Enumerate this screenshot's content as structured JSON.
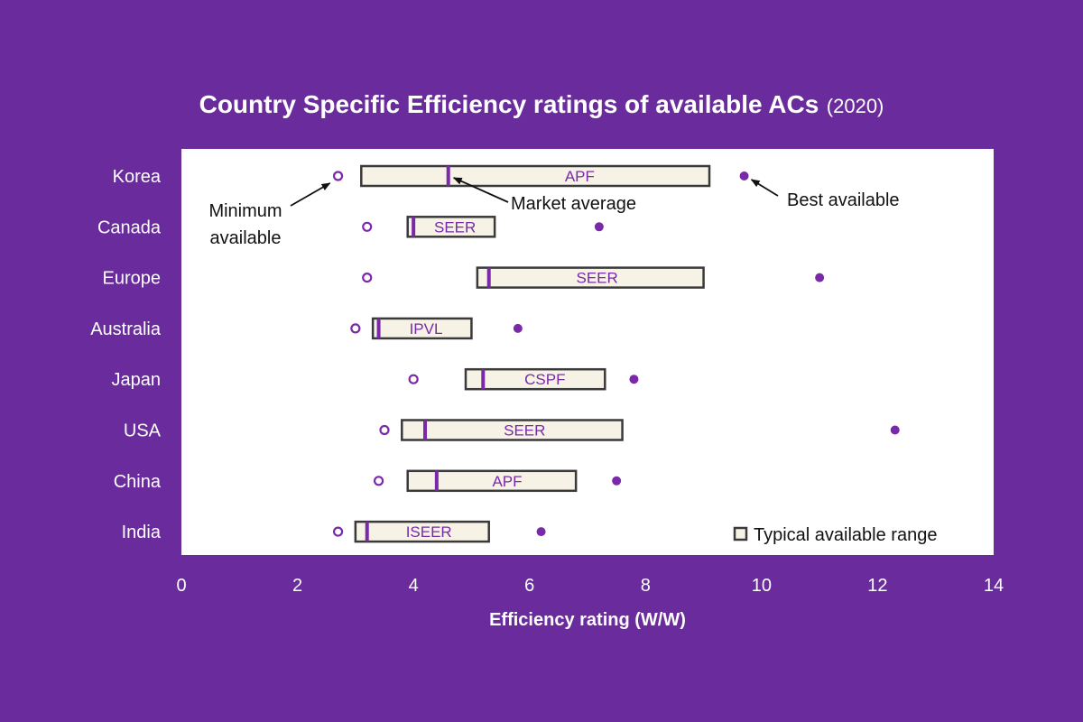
{
  "chart_data": {
    "type": "range",
    "title": "Country Specific Efficiency ratings of available ACs",
    "subtitle": "(2020)",
    "xlabel": "Efficiency rating (W/W)",
    "xlim": [
      0,
      14
    ],
    "xticks": [
      0,
      2,
      4,
      6,
      8,
      10,
      12,
      14
    ],
    "grid": false,
    "legend": {
      "label": "Typical available range",
      "placement": "bottom-right"
    },
    "annotations": {
      "minimum": "Minimum\navailable",
      "average": "Market average",
      "best": "Best available"
    },
    "categories": [
      "Korea",
      "Canada",
      "Europe",
      "Australia",
      "Japan",
      "USA",
      "China",
      "India"
    ],
    "metrics": [
      "APF",
      "SEER",
      "SEER",
      "IPVL",
      "CSPF",
      "SEER",
      "APF",
      "ISEER"
    ],
    "minimum": [
      2.7,
      3.2,
      3.2,
      3.0,
      4.0,
      3.5,
      3.4,
      2.7
    ],
    "range_low": [
      3.1,
      3.9,
      5.1,
      3.3,
      4.9,
      3.8,
      3.9,
      3.0
    ],
    "range_high": [
      9.1,
      5.4,
      9.0,
      5.0,
      7.3,
      7.6,
      6.8,
      5.3
    ],
    "market_average": [
      4.6,
      4.0,
      5.3,
      3.4,
      5.2,
      4.2,
      4.4,
      3.2
    ],
    "best_available": [
      9.7,
      7.2,
      11.0,
      5.8,
      7.8,
      12.3,
      7.5,
      6.2
    ]
  },
  "colors": {
    "background": "#6a2c9c",
    "plot_area": "#ffffff",
    "box_fill": "#f6f2e6",
    "box_border": "#3a3a3a",
    "marker": "#7a2aa8",
    "axis_text": "#ffffff",
    "label_text": "#333333"
  }
}
